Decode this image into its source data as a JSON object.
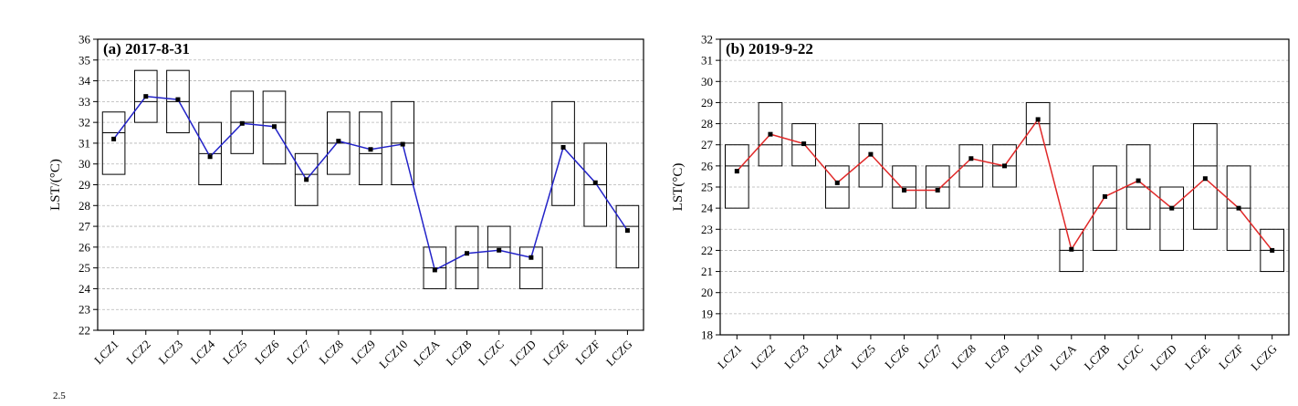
{
  "stray_mark": "2.5",
  "chart_data": [
    {
      "type": "box",
      "title": "(a) 2017-8-31",
      "ylabel": "LST/(°C)",
      "xlabel": "",
      "ylim": [
        22,
        36
      ],
      "yticks": [
        22,
        23,
        24,
        25,
        26,
        27,
        28,
        29,
        30,
        31,
        32,
        33,
        34,
        35,
        36
      ],
      "grid": true,
      "line_color": "#2323c8",
      "categories": [
        "LCZ1",
        "LCZ2",
        "LCZ3",
        "LCZ4",
        "LCZ5",
        "LCZ6",
        "LCZ7",
        "LCZ8",
        "LCZ9",
        "LCZ10",
        "LCZA",
        "LCZB",
        "LCZC",
        "LCZD",
        "LCZE",
        "LCZF",
        "LCZG"
      ],
      "box_low": [
        29.5,
        32,
        31.5,
        29,
        30.5,
        30,
        28,
        29.5,
        29,
        29,
        24,
        24,
        25,
        24,
        28,
        27,
        25
      ],
      "box_high": [
        32.5,
        34.5,
        34.5,
        32,
        33.5,
        33.5,
        30.5,
        32.5,
        32.5,
        33,
        26,
        27,
        27,
        26,
        33,
        31,
        28
      ],
      "median": [
        31.5,
        33,
        33,
        30.5,
        32,
        32,
        29.5,
        31,
        30.5,
        31,
        25,
        25,
        26,
        25,
        31,
        29,
        27
      ],
      "mean": [
        31.2,
        33.25,
        33.1,
        30.35,
        31.95,
        31.8,
        29.25,
        31.1,
        30.7,
        30.95,
        24.9,
        25.7,
        25.85,
        25.5,
        30.8,
        29.1,
        26.8
      ]
    },
    {
      "type": "box",
      "title": "(b) 2019-9-22",
      "ylabel": "LST(°C)",
      "xlabel": "",
      "ylim": [
        18,
        32
      ],
      "yticks": [
        18,
        19,
        20,
        21,
        22,
        23,
        24,
        25,
        26,
        27,
        28,
        29,
        30,
        31,
        32
      ],
      "grid": true,
      "line_color": "#e02828",
      "categories": [
        "LCZ1",
        "LCZ2",
        "LCZ3",
        "LCZ4",
        "LCZ5",
        "LCZ6",
        "LCZ7",
        "LCZ8",
        "LCZ9",
        "LCZ10",
        "LCZA",
        "LCZB",
        "LCZC",
        "LCZD",
        "LCZE",
        "LCZF",
        "LCZG"
      ],
      "box_low": [
        24,
        26,
        26,
        24,
        25,
        24,
        24,
        25,
        25,
        27,
        21,
        22,
        23,
        22,
        23,
        22,
        21
      ],
      "box_high": [
        27,
        29,
        28,
        26,
        28,
        26,
        26,
        27,
        27,
        29,
        23,
        26,
        27,
        25,
        28,
        26,
        23
      ],
      "median": [
        26,
        27,
        27,
        25,
        27,
        25,
        25,
        26,
        26,
        28,
        22,
        24,
        25,
        24,
        26,
        24,
        22
      ],
      "mean": [
        25.75,
        27.5,
        27.05,
        25.2,
        26.55,
        24.85,
        24.85,
        26.35,
        26.0,
        28.2,
        22.05,
        24.55,
        25.3,
        24.0,
        25.4,
        24.0,
        22.0
      ]
    }
  ]
}
